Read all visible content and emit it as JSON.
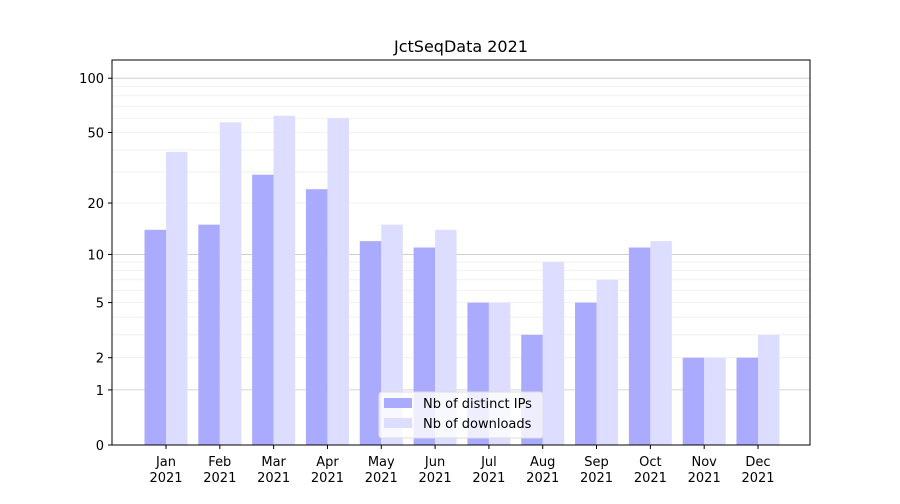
{
  "chart_data": {
    "type": "bar",
    "title": "JctSeqData 2021",
    "xlabel": "",
    "ylabel": "",
    "yscale": "symlog (log10(1+y))",
    "ylim": [
      0,
      120
    ],
    "yticks": [
      0,
      1,
      2,
      5,
      10,
      20,
      50,
      100
    ],
    "grid": "horizontal, major and minor",
    "legend_position": "bottom-center",
    "categories": [
      "Jan\n2021",
      "Feb\n2021",
      "Mar\n2021",
      "Apr\n2021",
      "May\n2021",
      "Jun\n2021",
      "Jul\n2021",
      "Aug\n2021",
      "Sep\n2021",
      "Oct\n2021",
      "Nov\n2021",
      "Dec\n2021"
    ],
    "series": [
      {
        "name": "Nb of distinct IPs",
        "color": "#aaaaff",
        "values": [
          14,
          15,
          29,
          24,
          12,
          11,
          5,
          3,
          5,
          11,
          2,
          2
        ]
      },
      {
        "name": "Nb of downloads",
        "color": "#ddddff",
        "values": [
          39,
          57,
          62,
          60,
          15,
          14,
          5,
          9,
          7,
          12,
          2,
          3
        ]
      }
    ]
  }
}
